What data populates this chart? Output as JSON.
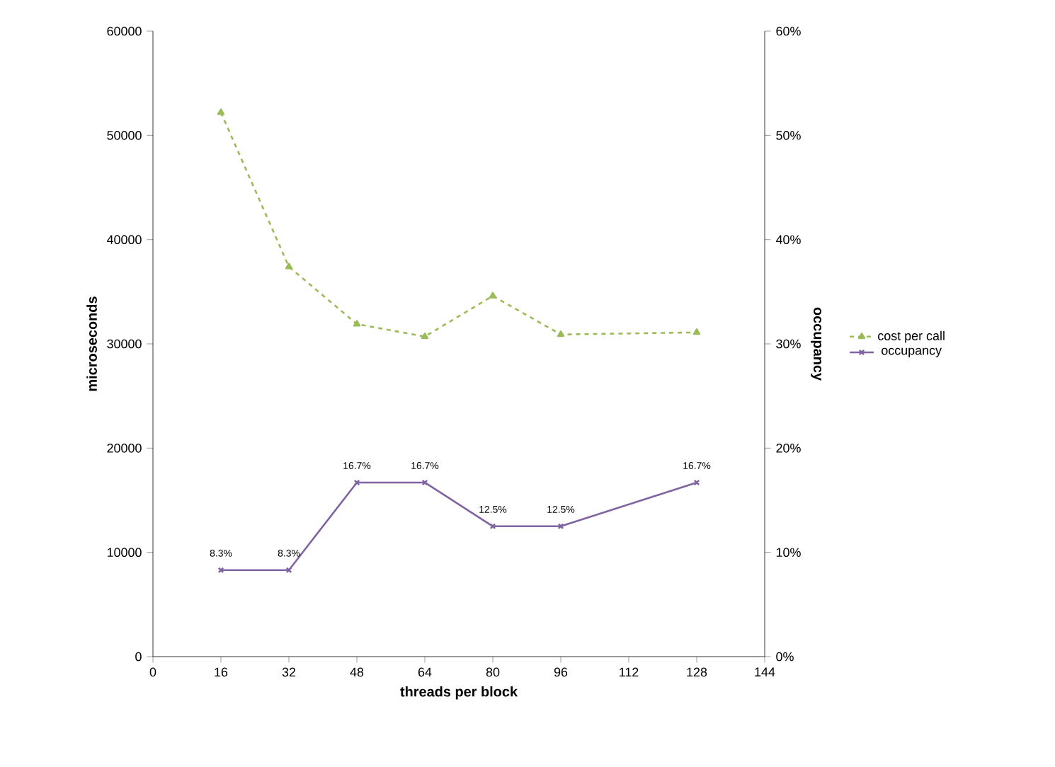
{
  "chart_data": {
    "type": "line",
    "xlabel": "threads per block",
    "ylabel": "microseconds",
    "y2label": "occupancy",
    "x": [
      16,
      32,
      48,
      64,
      80,
      96,
      128
    ],
    "series": [
      {
        "name": "cost per call",
        "color": "#9bbb59",
        "values": [
          52200,
          37400,
          31900,
          30700,
          34600,
          30900,
          31100
        ],
        "marker": "triangle",
        "line_style": "dashed"
      },
      {
        "name": "occupancy",
        "color": "#8064a2",
        "axis": "y2",
        "values": [
          8.3,
          8.3,
          16.7,
          16.7,
          12.5,
          12.5,
          16.7
        ],
        "marker": "cross",
        "line_style": "solid",
        "value_labels": [
          "8.3%",
          "8.3%",
          "16.7%",
          "16.7%",
          "12.5%",
          "12.5%",
          "16.7%"
        ]
      }
    ],
    "xlim": [
      0,
      144
    ],
    "xticks": [
      0,
      16,
      32,
      48,
      64,
      80,
      96,
      112,
      128,
      144
    ],
    "ylim": [
      0,
      60000
    ],
    "yticks": [
      0,
      10000,
      20000,
      30000,
      40000,
      50000,
      60000
    ],
    "y2lim": [
      0,
      60
    ],
    "y2ticks": [
      {
        "value": 0,
        "label": "0%"
      },
      {
        "value": 10,
        "label": "10%"
      },
      {
        "value": 20,
        "label": "20%"
      },
      {
        "value": 30,
        "label": "30%"
      },
      {
        "value": 40,
        "label": "40%"
      },
      {
        "value": 50,
        "label": "50%"
      },
      {
        "value": 60,
        "label": "60%"
      }
    ],
    "grid": false,
    "legend": "right"
  }
}
